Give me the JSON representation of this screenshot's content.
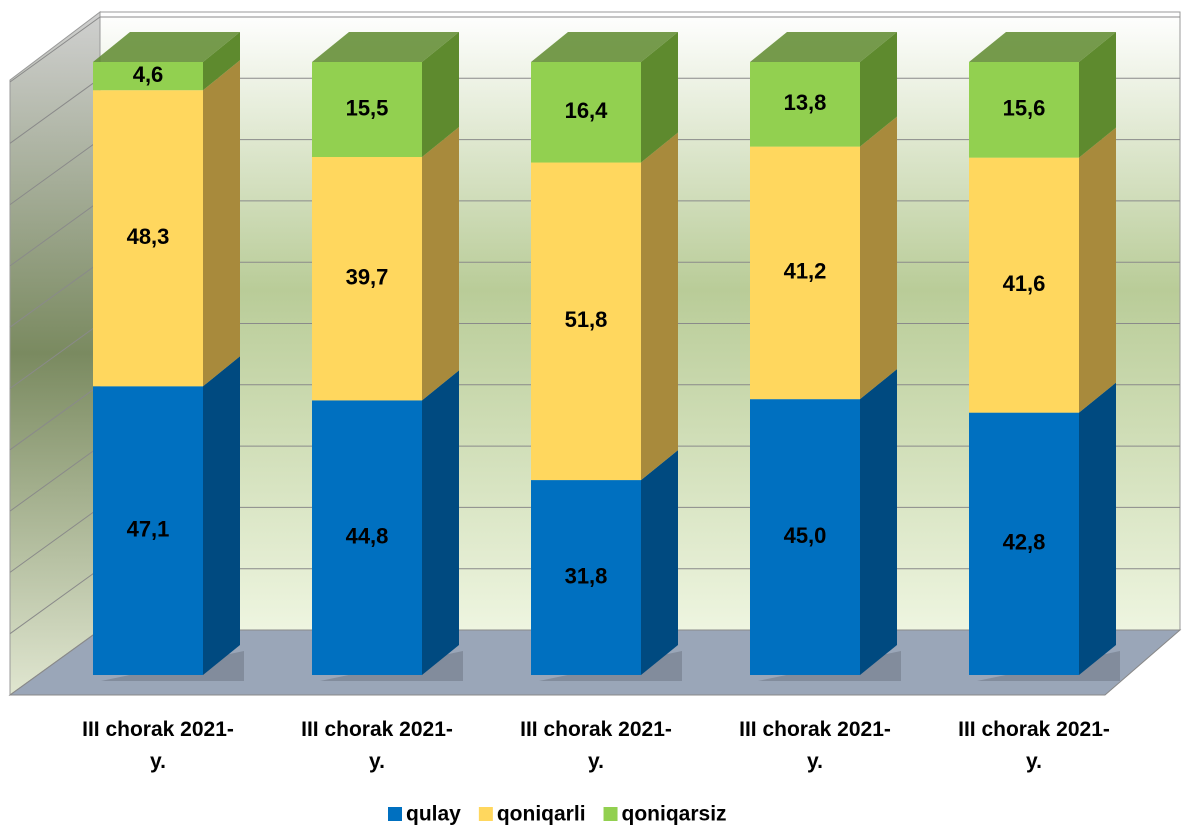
{
  "chart_data": {
    "type": "bar3d_stacked",
    "categories": [
      "III chorak 2021-y.",
      "III chorak 2021-y.",
      "III chorak 2021-y.",
      "III chorak 2021-y.",
      "III chorak 2021-y."
    ],
    "series": [
      {
        "name": "qulay",
        "color": "#0070c0",
        "side": "#004a80",
        "values": [
          47.1,
          44.8,
          31.8,
          45.0,
          42.8
        ],
        "value_labels": [
          "47,1",
          "44,8",
          "31,8",
          "45,0",
          "42,8"
        ]
      },
      {
        "name": "qoniqarli",
        "color": "#ffd75e",
        "side": "#a88a3c",
        "values": [
          48.3,
          39.7,
          51.8,
          41.2,
          41.6
        ],
        "value_labels": [
          "48,3",
          "39,7",
          "51,8",
          "41,2",
          "41,6"
        ]
      },
      {
        "name": "qoniqarsiz",
        "color": "#92d050",
        "side": "#5e8a2e",
        "values": [
          4.6,
          15.5,
          16.4,
          13.8,
          15.6
        ],
        "value_labels": [
          "4,6",
          "15,5",
          "16,4",
          "13,8",
          "15,6"
        ]
      }
    ],
    "ylim": [
      0,
      100
    ],
    "yticks": [
      0,
      10,
      20,
      30,
      40,
      50,
      60,
      70,
      80,
      90,
      100
    ],
    "grid": true,
    "legend": "bottom"
  }
}
